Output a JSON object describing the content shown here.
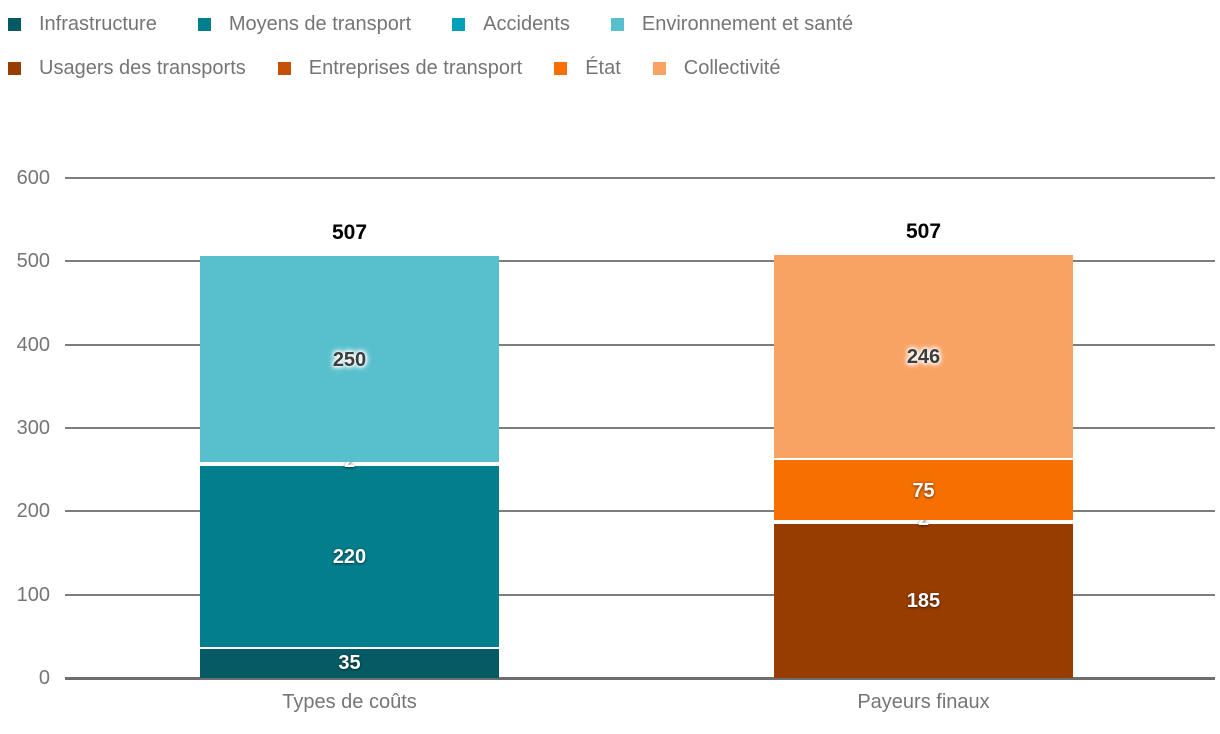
{
  "legend": {
    "rows": [
      [
        {
          "label": "Infrastructure",
          "color": "#055A64"
        },
        {
          "label": "Moyens de transport",
          "color": "#027E8C"
        },
        {
          "label": "Accidents",
          "color": "#00A0B8"
        },
        {
          "label": "Environnement et santé",
          "color": "#57C0CC"
        }
      ],
      [
        {
          "label": "Usagers des transports",
          "color": "#983D02"
        },
        {
          "label": "Entreprises de transport",
          "color": "#C75008"
        },
        {
          "label": "État",
          "color": "#F57000"
        },
        {
          "label": "Collectivité",
          "color": "#F8A263"
        }
      ]
    ]
  },
  "chart_data": {
    "type": "bar",
    "stacked": true,
    "title": "",
    "xlabel": "",
    "ylabel": "",
    "categories": [
      "Types de coûts",
      "Payeurs finaux"
    ],
    "series": [
      {
        "name": "Infrastructure",
        "color": "#055A64",
        "values": [
          35,
          null
        ],
        "label_color": "#FFFFFF"
      },
      {
        "name": "Moyens de transport",
        "color": "#027E8C",
        "values": [
          220,
          null
        ],
        "label_color": "#FFFFFF"
      },
      {
        "name": "Accidents",
        "color": "#00A0B8",
        "values": [
          2,
          null
        ],
        "label_color": "#FFFFFF"
      },
      {
        "name": "Environnement et santé",
        "color": "#57C0CC",
        "values": [
          250,
          null
        ],
        "label_color": "#3D3D3D"
      },
      {
        "name": "Usagers des transports",
        "color": "#983D02",
        "values": [
          null,
          185
        ],
        "label_color": "#FFFFFF"
      },
      {
        "name": "Entreprises de transport",
        "color": "#C75008",
        "values": [
          null,
          2
        ],
        "label_color": "#FFFFFF"
      },
      {
        "name": "État",
        "color": "#F57000",
        "values": [
          null,
          75
        ],
        "label_color": "#FFFFFF"
      },
      {
        "name": "Collectivité",
        "color": "#F8A263",
        "values": [
          null,
          246
        ],
        "label_color": "#3D3D3D"
      }
    ],
    "totals": [
      "507",
      "507"
    ],
    "ylim": [
      0,
      600
    ],
    "yticks": [
      0,
      100,
      200,
      300,
      400,
      500,
      600
    ],
    "grid": true,
    "legend_position": "top-left",
    "axis_text_color": "#757575",
    "grid_color": "#7d7d7d"
  }
}
